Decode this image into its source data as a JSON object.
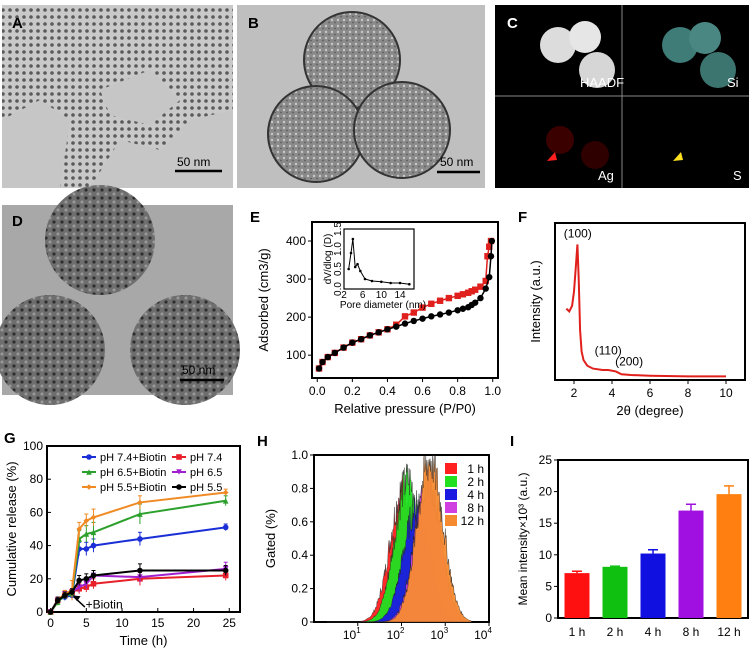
{
  "panels": {
    "A": {
      "label": "A",
      "scale_bar": "50 nm"
    },
    "B": {
      "label": "B",
      "scale_bar": "50 nm"
    },
    "C": {
      "label": "C",
      "quadrants": [
        "HAADF",
        "Si",
        "Ag",
        "S"
      ]
    },
    "D": {
      "label": "D",
      "scale_bar": "50 nm"
    },
    "E": {
      "label": "E"
    },
    "F": {
      "label": "F"
    },
    "G": {
      "label": "G"
    },
    "H": {
      "label": "H"
    },
    "I": {
      "label": "I"
    }
  },
  "chart_data": [
    {
      "panel": "E",
      "type": "line",
      "xlabel": "Relative pressure (P/P0)",
      "ylabel": "Adsorbed (cm3/g)",
      "xlim": [
        0,
        1
      ],
      "ylim": [
        40,
        450
      ],
      "xticks": [
        0.0,
        0.2,
        0.4,
        0.6,
        0.8,
        1.0
      ],
      "yticks": [
        100,
        200,
        300,
        400
      ],
      "series": [
        {
          "color": "#e0201c",
          "marker": "square",
          "x": [
            0.01,
            0.03,
            0.06,
            0.1,
            0.15,
            0.2,
            0.25,
            0.3,
            0.35,
            0.4,
            0.45,
            0.5,
            0.55,
            0.6,
            0.65,
            0.7,
            0.75,
            0.8,
            0.83,
            0.86,
            0.88,
            0.9,
            0.93,
            0.96,
            0.97,
            0.98,
            0.99
          ],
          "y": [
            65,
            82,
            95,
            106,
            120,
            133,
            142,
            152,
            160,
            168,
            180,
            202,
            212,
            225,
            235,
            243,
            250,
            256,
            260,
            264,
            268,
            272,
            280,
            295,
            360,
            385,
            400
          ]
        },
        {
          "color": "#000000",
          "marker": "circle",
          "x": [
            0.01,
            0.03,
            0.06,
            0.1,
            0.15,
            0.2,
            0.25,
            0.3,
            0.35,
            0.4,
            0.45,
            0.5,
            0.55,
            0.6,
            0.65,
            0.7,
            0.75,
            0.8,
            0.83,
            0.86,
            0.88,
            0.9,
            0.93,
            0.96,
            0.98,
            0.99,
            0.995
          ],
          "y": [
            65,
            82,
            95,
            106,
            120,
            133,
            142,
            152,
            160,
            168,
            175,
            183,
            190,
            196,
            202,
            207,
            212,
            218,
            222,
            226,
            232,
            238,
            250,
            275,
            305,
            360,
            400
          ]
        }
      ],
      "inset": {
        "type": "line",
        "xlabel": "Pore diameter (nm)",
        "ylabel": "dV/dlog (D)",
        "xlim": [
          2,
          17
        ],
        "ylim": [
          0,
          1.5
        ],
        "xticks": [
          2,
          6,
          10,
          14
        ],
        "yticks": [
          0.0,
          0.5,
          1.0,
          1.5
        ],
        "x": [
          3.0,
          3.5,
          3.9,
          4.4,
          4.9,
          5.5,
          6.5,
          8,
          10,
          12,
          14,
          16
        ],
        "y": [
          0.5,
          0.9,
          1.25,
          0.55,
          0.62,
          0.45,
          0.25,
          0.2,
          0.18,
          0.15,
          0.15,
          0.12
        ]
      }
    },
    {
      "panel": "F",
      "type": "line",
      "xlabel": "2θ (degree)",
      "ylabel": "Intensity (a.u.)",
      "xlim": [
        1,
        11
      ],
      "ylim": [
        0,
        1.1
      ],
      "xticks": [
        2,
        4,
        6,
        8,
        10
      ],
      "color": "#e0201c",
      "x": [
        1.6,
        1.75,
        1.9,
        2.0,
        2.1,
        2.18,
        2.25,
        2.32,
        2.4,
        2.5,
        2.7,
        3.0,
        3.5,
        3.8,
        4.2,
        4.5,
        5,
        6,
        8,
        10
      ],
      "y": [
        0.5,
        0.48,
        0.52,
        0.62,
        0.8,
        0.95,
        0.7,
        0.35,
        0.2,
        0.14,
        0.1,
        0.08,
        0.07,
        0.07,
        0.06,
        0.04,
        0.035,
        0.03,
        0.025,
        0.025
      ],
      "annotations": [
        {
          "text": "(100)",
          "x": 2.2,
          "y": 1.0
        },
        {
          "text": "(110)",
          "x": 3.8,
          "y": 0.18
        },
        {
          "text": "(200)",
          "x": 4.9,
          "y": 0.1
        }
      ]
    },
    {
      "panel": "G",
      "type": "line",
      "xlabel": "Time (h)",
      "ylabel": "Cumulative release (%)",
      "xlim": [
        0,
        26
      ],
      "ylim": [
        0,
        100
      ],
      "xticks": [
        0,
        5,
        10,
        15,
        20,
        25
      ],
      "yticks": [
        0,
        20,
        40,
        60,
        80,
        100
      ],
      "x": [
        0,
        1,
        2,
        3,
        4,
        5,
        6,
        12.5,
        24.5
      ],
      "legend": "top",
      "annotation": "+Biotin",
      "series": [
        {
          "name": "pH 7.4+Biotin",
          "color": "#1a2fd6",
          "marker": "circle",
          "values": [
            0,
            7,
            9,
            10,
            38,
            38,
            40,
            44,
            51
          ],
          "err": [
            1,
            2,
            2,
            2,
            4,
            4,
            4,
            4,
            2
          ]
        },
        {
          "name": "pH 7.4",
          "color": "#e8202a",
          "marker": "square",
          "values": [
            0,
            7,
            10,
            12,
            14,
            15,
            17,
            20,
            22
          ],
          "err": [
            1,
            2,
            2,
            2,
            3,
            3,
            3,
            4,
            3
          ]
        },
        {
          "name": "pH 6.5+Biotin",
          "color": "#2ca02c",
          "marker": "triangle",
          "values": [
            0,
            6,
            10,
            11,
            44,
            47,
            48,
            59,
            67
          ],
          "err": [
            1,
            2,
            2,
            2,
            5,
            5,
            6,
            6,
            3
          ]
        },
        {
          "name": "pH 6.5",
          "color": "#a020d0",
          "marker": "triangle-down",
          "values": [
            0,
            7,
            11,
            12,
            15,
            17,
            22,
            21,
            26
          ],
          "err": [
            1,
            2,
            2,
            2,
            3,
            3,
            3,
            3,
            4
          ]
        },
        {
          "name": "pH 5.5+Biotin",
          "color": "#f08a24",
          "marker": "diamond",
          "values": [
            0,
            7,
            11,
            13,
            50,
            55,
            57,
            66,
            72
          ],
          "err": [
            1,
            2,
            2,
            6,
            4,
            4,
            5,
            4,
            2
          ]
        },
        {
          "name": "pH 5.5",
          "color": "#000000",
          "marker": "circle",
          "values": [
            0,
            7,
            10,
            12,
            19,
            20,
            22,
            25,
            25
          ],
          "err": [
            1,
            2,
            2,
            2,
            3,
            3,
            3,
            4,
            3
          ]
        }
      ]
    },
    {
      "panel": "H",
      "type": "area",
      "xlabel": "",
      "ylabel": "Gated (%)",
      "xscale": "log",
      "xlim": [
        1,
        10000
      ],
      "ylim": [
        0,
        1.0
      ],
      "xticks": [
        "10^1",
        "10^2",
        "10^3",
        "10^4"
      ],
      "yticks": [
        0,
        0.2,
        0.4,
        0.6,
        0.8,
        1.0
      ],
      "legend": "top-right",
      "series": [
        {
          "name": "1 h",
          "color": "#ff2020",
          "peak": 110,
          "height": 0.8
        },
        {
          "name": "2 h",
          "color": "#20e020",
          "peak": 140,
          "height": 0.85
        },
        {
          "name": "4 h",
          "color": "#1a1ae0",
          "peak": 220,
          "height": 0.68
        },
        {
          "name": "8 h",
          "color": "#d040e0",
          "peak": 400,
          "height": 0.85
        },
        {
          "name": "12 h",
          "color": "#f58a30",
          "peak": 450,
          "height": 0.97
        }
      ]
    },
    {
      "panel": "I",
      "type": "bar",
      "xlabel": "",
      "ylabel": "Mean intensity×10³ (a.u.)",
      "ylim": [
        0,
        25
      ],
      "yticks": [
        0,
        5,
        10,
        15,
        20,
        25
      ],
      "categories": [
        "1 h",
        "2 h",
        "4 h",
        "8 h",
        "12 h"
      ],
      "values": [
        7.1,
        8.1,
        10.2,
        17.0,
        19.6
      ],
      "err": [
        0.3,
        0.1,
        0.6,
        1.0,
        1.3
      ],
      "colors": [
        "#ff1010",
        "#10c010",
        "#1010e0",
        "#a010e0",
        "#ff8010"
      ]
    }
  ]
}
